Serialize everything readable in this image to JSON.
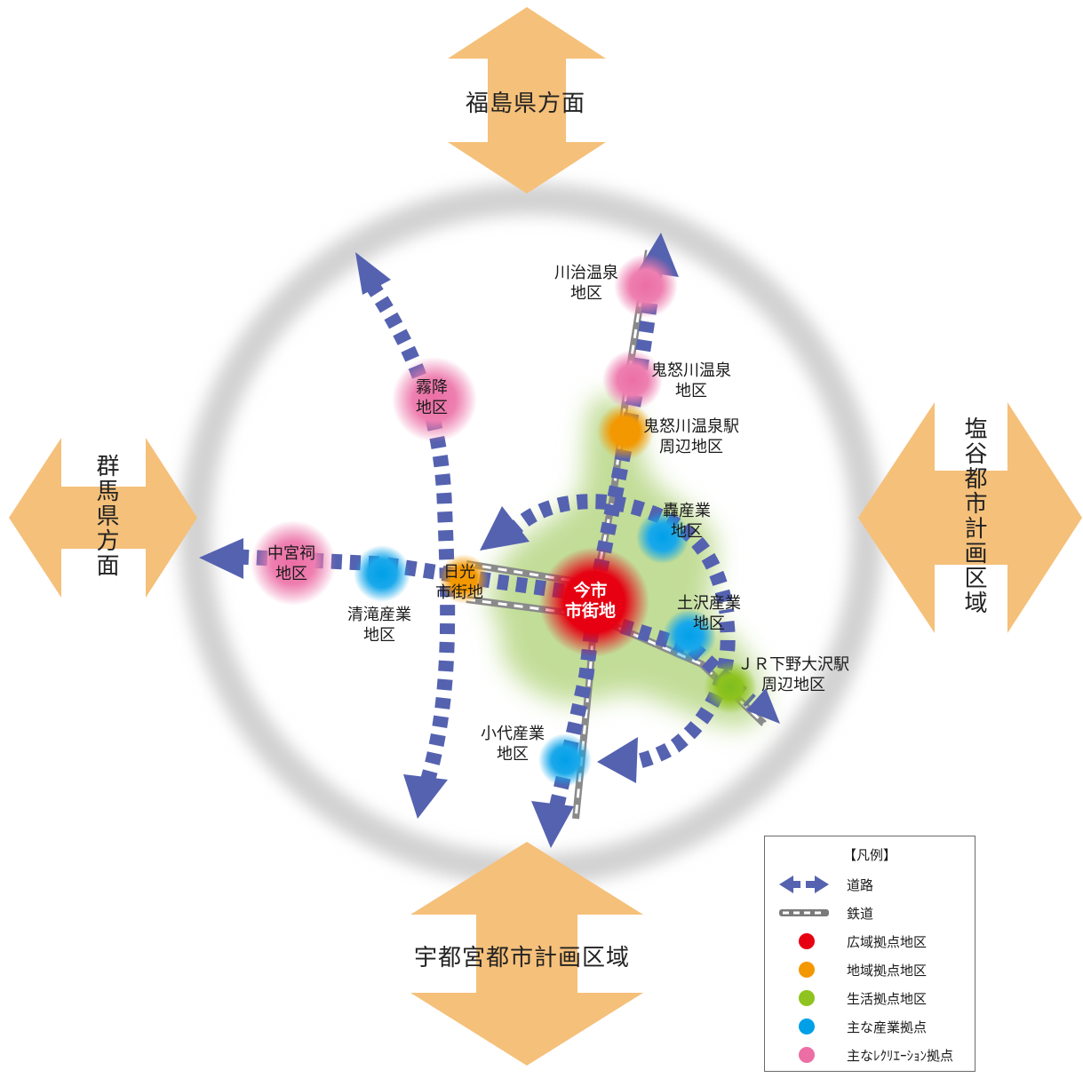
{
  "directions": {
    "north": "福島県方面",
    "west": "群馬県方面",
    "east": "塩谷都市計画区域",
    "south": "宇都宮都市計画区域"
  },
  "districts": {
    "imaichi": "今市\n市街地",
    "nikko": "日光\n市街地",
    "kawaji": "川治温泉\n地区",
    "kinugawa": "鬼怒川温泉\n地区",
    "kinugawa_station": "鬼怒川温泉駅\n周辺地区",
    "kirifuri": "霧降\n地区",
    "chuguji": "中宮祠\n地区",
    "kiyotaki": "清滝産業\n地区",
    "todoroki": "轟産業\n地区",
    "dosawa": "土沢産業\n地区",
    "jr_shimono": "ＪＲ下野大沢駅\n周辺地区",
    "koshiro": "小代産業\n地区"
  },
  "legend": {
    "title": "【凡例】",
    "items": [
      {
        "label": "道路",
        "kind": "road"
      },
      {
        "label": "鉄道",
        "kind": "rail"
      },
      {
        "label": "広域拠点地区",
        "kind": "dot",
        "color": "#e60012"
      },
      {
        "label": "地域拠点地区",
        "kind": "dot",
        "color": "#f39800"
      },
      {
        "label": "生活拠点地区",
        "kind": "dot",
        "color": "#8fc31f"
      },
      {
        "label": "主な産業拠点",
        "kind": "dot",
        "color": "#00a0e9"
      },
      {
        "label": "主なﾚｸﾘｴｰｼｮﾝ拠点",
        "kind": "dot",
        "color": "#eb6ea5"
      }
    ]
  },
  "colors": {
    "arrow": "#f5c07a",
    "road": "#5562b0",
    "ring": "#d3d3d3",
    "green_area": "#c5de9a"
  }
}
